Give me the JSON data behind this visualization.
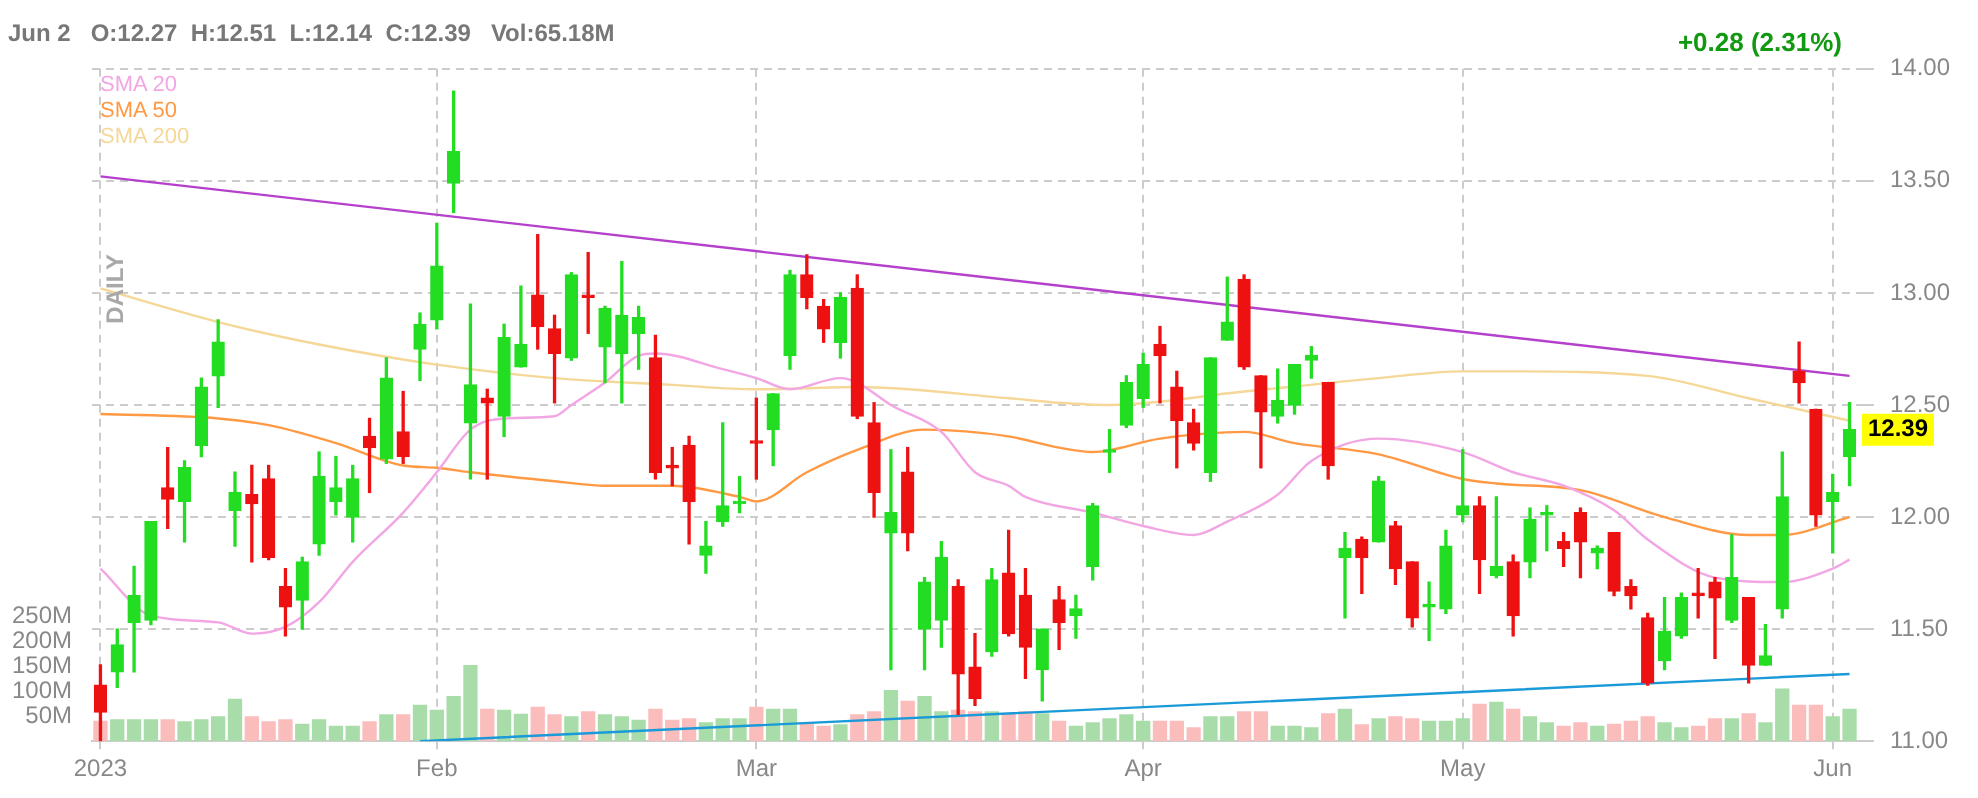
{
  "chart_data": {
    "type": "candlestick",
    "title": "Jun 2   O:12.27  H:12.51  L:12.14  C:12.39   Vol:65.18M",
    "categories": [
      "2023",
      null,
      null,
      null,
      null,
      null,
      null,
      null,
      null,
      null,
      null,
      null,
      null,
      null,
      null,
      null,
      null,
      null,
      null,
      null,
      "Feb",
      null,
      null,
      null,
      null,
      null,
      null,
      null,
      null,
      null,
      null,
      null,
      null,
      null,
      null,
      null,
      null,
      null,
      null,
      "Mar",
      null,
      null,
      null,
      null,
      null,
      null,
      null,
      null,
      null,
      null,
      null,
      null,
      null,
      null,
      null,
      null,
      null,
      null,
      null,
      null,
      null,
      null,
      "Apr",
      null,
      null,
      null,
      null,
      null,
      null,
      null,
      null,
      null,
      null,
      null,
      null,
      null,
      null,
      null,
      null,
      null,
      null,
      "May",
      null,
      null,
      null,
      null,
      null,
      null,
      null,
      null,
      null,
      null,
      null,
      null,
      null,
      null,
      null,
      null,
      null,
      null,
      null,
      null,
      null,
      "Jun",
      null
    ],
    "series": [
      {
        "ohlc": [
          [
            11.25,
            11.34,
            11.0,
            11.13
          ],
          [
            11.31,
            11.5,
            11.24,
            11.43
          ],
          [
            11.53,
            11.78,
            11.31,
            11.65
          ],
          [
            11.54,
            11.98,
            11.52,
            11.98
          ],
          [
            12.13,
            12.31,
            11.95,
            12.08
          ],
          [
            12.07,
            12.25,
            11.89,
            12.22
          ],
          [
            12.32,
            12.62,
            12.27,
            12.58
          ],
          [
            12.63,
            12.88,
            12.49,
            12.78
          ],
          [
            12.03,
            12.2,
            11.87,
            12.11
          ],
          [
            12.1,
            12.23,
            11.8,
            12.06
          ],
          [
            12.17,
            12.23,
            11.81,
            11.82
          ],
          [
            11.69,
            11.77,
            11.47,
            11.6
          ],
          [
            11.63,
            11.82,
            11.5,
            11.8
          ],
          [
            11.88,
            12.29,
            11.83,
            12.18
          ],
          [
            12.07,
            12.27,
            12.01,
            12.13
          ],
          [
            12.0,
            12.23,
            11.89,
            12.17
          ],
          [
            12.36,
            12.44,
            12.11,
            12.31
          ],
          [
            12.26,
            12.71,
            12.24,
            12.62
          ],
          [
            12.38,
            12.56,
            12.24,
            12.27
          ],
          [
            12.75,
            12.91,
            12.61,
            12.86
          ],
          [
            12.88,
            13.31,
            12.84,
            13.12
          ],
          [
            13.49,
            13.9,
            13.36,
            13.63
          ],
          [
            12.42,
            12.95,
            12.17,
            12.59
          ],
          [
            12.53,
            12.57,
            12.17,
            12.51
          ],
          [
            12.45,
            12.86,
            12.36,
            12.8
          ],
          [
            12.67,
            13.03,
            12.67,
            12.77
          ],
          [
            12.99,
            13.26,
            12.75,
            12.85
          ],
          [
            12.84,
            12.9,
            12.51,
            12.73
          ],
          [
            12.71,
            13.09,
            12.7,
            13.08
          ],
          [
            12.99,
            13.18,
            12.82,
            12.98
          ],
          [
            12.76,
            12.94,
            12.6,
            12.93
          ],
          [
            12.73,
            13.14,
            12.51,
            12.9
          ],
          [
            12.82,
            12.94,
            12.66,
            12.89
          ],
          [
            12.71,
            12.81,
            12.17,
            12.2
          ],
          [
            12.23,
            12.31,
            12.14,
            12.22
          ],
          [
            12.32,
            12.36,
            11.88,
            12.07
          ],
          [
            11.83,
            11.98,
            11.75,
            11.87
          ],
          [
            11.98,
            12.42,
            11.96,
            12.05
          ],
          [
            12.06,
            12.18,
            12.02,
            12.07
          ],
          [
            12.34,
            12.53,
            12.17,
            12.33
          ],
          [
            12.39,
            12.55,
            12.23,
            12.55
          ],
          [
            12.72,
            13.1,
            12.66,
            13.08
          ],
          [
            13.08,
            13.17,
            12.93,
            12.98
          ],
          [
            12.94,
            12.97,
            12.78,
            12.84
          ],
          [
            12.78,
            13.0,
            12.71,
            12.98
          ],
          [
            13.02,
            13.08,
            12.44,
            12.45
          ],
          [
            12.42,
            12.51,
            12.0,
            12.11
          ],
          [
            11.93,
            12.3,
            11.32,
            12.02
          ],
          [
            12.2,
            12.31,
            11.85,
            11.93
          ],
          [
            11.5,
            11.73,
            11.32,
            11.71
          ],
          [
            11.54,
            11.89,
            11.42,
            11.82
          ],
          [
            11.69,
            11.72,
            11.12,
            11.3
          ],
          [
            11.33,
            11.48,
            11.16,
            11.19
          ],
          [
            11.4,
            11.77,
            11.38,
            11.72
          ],
          [
            11.75,
            11.94,
            11.47,
            11.48
          ],
          [
            11.65,
            11.77,
            11.28,
            11.42
          ],
          [
            11.32,
            11.5,
            11.18,
            11.5
          ],
          [
            11.63,
            11.69,
            11.41,
            11.53
          ],
          [
            11.56,
            11.65,
            11.46,
            11.59
          ],
          [
            11.78,
            12.06,
            11.72,
            12.05
          ],
          [
            12.29,
            12.39,
            12.2,
            12.3
          ],
          [
            12.41,
            12.63,
            12.4,
            12.6
          ],
          [
            12.53,
            12.73,
            12.49,
            12.68
          ],
          [
            12.77,
            12.85,
            12.51,
            12.72
          ],
          [
            12.58,
            12.65,
            12.22,
            12.43
          ],
          [
            12.42,
            12.48,
            12.3,
            12.33
          ],
          [
            12.2,
            12.71,
            12.16,
            12.71
          ],
          [
            12.79,
            13.07,
            12.79,
            12.87
          ],
          [
            13.06,
            13.08,
            12.66,
            12.67
          ],
          [
            12.63,
            12.63,
            12.22,
            12.47
          ],
          [
            12.45,
            12.66,
            12.42,
            12.52
          ],
          [
            12.5,
            12.68,
            12.46,
            12.68
          ],
          [
            12.7,
            12.76,
            12.62,
            12.72
          ],
          [
            12.6,
            12.6,
            12.17,
            12.23
          ],
          [
            11.82,
            11.93,
            11.55,
            11.86
          ],
          [
            11.9,
            11.91,
            11.66,
            11.82
          ],
          [
            11.89,
            12.18,
            11.89,
            12.16
          ],
          [
            11.96,
            11.98,
            11.7,
            11.77
          ],
          [
            11.8,
            11.8,
            11.51,
            11.55
          ],
          [
            11.6,
            11.71,
            11.45,
            11.61
          ],
          [
            11.59,
            11.94,
            11.57,
            11.87
          ],
          [
            12.01,
            12.3,
            11.98,
            12.05
          ],
          [
            12.05,
            12.09,
            11.66,
            11.81
          ],
          [
            11.74,
            12.09,
            11.73,
            11.78
          ],
          [
            11.8,
            11.83,
            11.47,
            11.56
          ],
          [
            11.8,
            12.04,
            11.73,
            11.99
          ],
          [
            12.01,
            12.05,
            11.85,
            12.02
          ],
          [
            11.89,
            11.93,
            11.78,
            11.86
          ],
          [
            12.02,
            12.04,
            11.73,
            11.89
          ],
          [
            11.84,
            11.87,
            11.77,
            11.86
          ],
          [
            11.93,
            11.93,
            11.65,
            11.67
          ],
          [
            11.69,
            11.72,
            11.59,
            11.65
          ],
          [
            11.55,
            11.57,
            11.25,
            11.26
          ],
          [
            11.36,
            11.64,
            11.32,
            11.49
          ],
          [
            11.47,
            11.66,
            11.46,
            11.64
          ],
          [
            11.66,
            11.77,
            11.55,
            11.65
          ],
          [
            11.71,
            11.73,
            11.37,
            11.64
          ],
          [
            11.54,
            11.92,
            11.53,
            11.73
          ],
          [
            11.64,
            11.64,
            11.26,
            11.34
          ],
          [
            11.34,
            11.52,
            11.34,
            11.38
          ],
          [
            11.59,
            12.29,
            11.55,
            12.09
          ],
          [
            12.65,
            12.78,
            12.51,
            12.6
          ],
          [
            12.48,
            12.48,
            11.96,
            12.01
          ],
          [
            12.07,
            12.19,
            11.84,
            12.11
          ],
          [
            12.27,
            12.51,
            12.14,
            12.39
          ]
        ],
        "colors": [
          "#ee1111",
          "#22dd22",
          "#22dd22",
          "#22dd22",
          "#ee1111",
          "#22dd22",
          "#22dd22",
          "#22dd22",
          "#22dd22",
          "#ee1111",
          "#ee1111",
          "#ee1111",
          "#22dd22",
          "#22dd22",
          "#22dd22",
          "#22dd22",
          "#ee1111",
          "#22dd22",
          "#ee1111",
          "#22dd22",
          "#22dd22",
          "#22dd22",
          "#22dd22",
          "#ee1111",
          "#22dd22",
          "#22dd22",
          "#ee1111",
          "#ee1111",
          "#22dd22",
          "#ee1111",
          "#22dd22",
          "#22dd22",
          "#22dd22",
          "#ee1111",
          "#ee1111",
          "#ee1111",
          "#22dd22",
          "#22dd22",
          "#22dd22",
          "#ee1111",
          "#22dd22",
          "#22dd22",
          "#ee1111",
          "#ee1111",
          "#22dd22",
          "#ee1111",
          "#ee1111",
          "#22dd22",
          "#ee1111",
          "#22dd22",
          "#22dd22",
          "#ee1111",
          "#ee1111",
          "#22dd22",
          "#ee1111",
          "#ee1111",
          "#22dd22",
          "#ee1111",
          "#22dd22",
          "#22dd22",
          "#22dd22",
          "#22dd22",
          "#22dd22",
          "#ee1111",
          "#ee1111",
          "#ee1111",
          "#22dd22",
          "#22dd22",
          "#ee1111",
          "#ee1111",
          "#22dd22",
          "#22dd22",
          "#22dd22",
          "#ee1111",
          "#22dd22",
          "#ee1111",
          "#22dd22",
          "#ee1111",
          "#ee1111",
          "#22dd22",
          "#22dd22",
          "#22dd22",
          "#ee1111",
          "#22dd22",
          "#ee1111",
          "#22dd22",
          "#22dd22",
          "#ee1111",
          "#ee1111",
          "#22dd22",
          "#ee1111",
          "#ee1111",
          "#ee1111",
          "#22dd22",
          "#22dd22",
          "#ee1111",
          "#ee1111",
          "#22dd22",
          "#ee1111",
          "#22dd22",
          "#22dd22",
          "#ee1111",
          "#ee1111",
          "#22dd22",
          "#22dd22"
        ]
      },
      {
        "type": "bar",
        "axis": "y2",
        "values": [
          41,
          44,
          44,
          44,
          44,
          40,
          44,
          50,
          85,
          50,
          40,
          44,
          35,
          44,
          31,
          31,
          40,
          54,
          54,
          73,
          63,
          91,
          153,
          65,
          63,
          55,
          69,
          54,
          50,
          60,
          54,
          50,
          43,
          65,
          43,
          46,
          38,
          46,
          46,
          69,
          65,
          65,
          38,
          31,
          34,
          54,
          60,
          103,
          81,
          91,
          60,
          63,
          60,
          60,
          56,
          60,
          56,
          41,
          31,
          38,
          46,
          54,
          41,
          41,
          41,
          28,
          50,
          50,
          60,
          60,
          31,
          31,
          28,
          56,
          65,
          34,
          46,
          50,
          46,
          41,
          41,
          46,
          75,
          79,
          65,
          50,
          38,
          31,
          38,
          31,
          35,
          41,
          50,
          38,
          28,
          31,
          46,
          46,
          56,
          38,
          106,
          73,
          73,
          50,
          65.18
        ],
        "colors": [
          "#fbbcbc",
          "#a8dca8",
          "#a8dca8",
          "#a8dca8",
          "#fbbcbc",
          "#a8dca8",
          "#a8dca8",
          "#a8dca8",
          "#a8dca8",
          "#fbbcbc",
          "#fbbcbc",
          "#fbbcbc",
          "#a8dca8",
          "#a8dca8",
          "#a8dca8",
          "#a8dca8",
          "#fbbcbc",
          "#a8dca8",
          "#fbbcbc",
          "#a8dca8",
          "#a8dca8",
          "#a8dca8",
          "#a8dca8",
          "#fbbcbc",
          "#a8dca8",
          "#a8dca8",
          "#fbbcbc",
          "#fbbcbc",
          "#a8dca8",
          "#fbbcbc",
          "#a8dca8",
          "#a8dca8",
          "#a8dca8",
          "#fbbcbc",
          "#fbbcbc",
          "#fbbcbc",
          "#a8dca8",
          "#a8dca8",
          "#a8dca8",
          "#fbbcbc",
          "#a8dca8",
          "#a8dca8",
          "#fbbcbc",
          "#fbbcbc",
          "#a8dca8",
          "#fbbcbc",
          "#fbbcbc",
          "#a8dca8",
          "#fbbcbc",
          "#a8dca8",
          "#a8dca8",
          "#fbbcbc",
          "#fbbcbc",
          "#a8dca8",
          "#fbbcbc",
          "#fbbcbc",
          "#a8dca8",
          "#fbbcbc",
          "#a8dca8",
          "#a8dca8",
          "#a8dca8",
          "#a8dca8",
          "#a8dca8",
          "#fbbcbc",
          "#fbbcbc",
          "#fbbcbc",
          "#a8dca8",
          "#a8dca8",
          "#fbbcbc",
          "#fbbcbc",
          "#a8dca8",
          "#a8dca8",
          "#a8dca8",
          "#fbbcbc",
          "#a8dca8",
          "#fbbcbc",
          "#a8dca8",
          "#fbbcbc",
          "#fbbcbc",
          "#a8dca8",
          "#a8dca8",
          "#a8dca8",
          "#fbbcbc",
          "#a8dca8",
          "#fbbcbc",
          "#a8dca8",
          "#a8dca8",
          "#fbbcbc",
          "#fbbcbc",
          "#a8dca8",
          "#fbbcbc",
          "#fbbcbc",
          "#fbbcbc",
          "#a8dca8",
          "#a8dca8",
          "#fbbcbc",
          "#fbbcbc",
          "#a8dca8",
          "#fbbcbc",
          "#a8dca8",
          "#a8dca8",
          "#fbbcbc",
          "#fbbcbc",
          "#a8dca8",
          "#a8dca8"
        ]
      },
      {
        "type": "line",
        "name": "SMA 20",
        "color": "#f2a6e4",
        "values": [
          11.77,
          null,
          null,
          11.56,
          null,
          null,
          null,
          11.53,
          null,
          11.48,
          null,
          11.51,
          null,
          11.62,
          null,
          11.8,
          null,
          null,
          12.02,
          null,
          12.2,
          null,
          12.39,
          null,
          12.44,
          null,
          null,
          12.45,
          12.5,
          null,
          12.6,
          null,
          12.72,
          12.73,
          null,
          null,
          null,
          12.66,
          null,
          12.62,
          null,
          12.57,
          null,
          null,
          12.62,
          12.6,
          null,
          12.5,
          null,
          null,
          12.38,
          null,
          12.2,
          null,
          12.14,
          12.09,
          null,
          null,
          null,
          12.02,
          null,
          null,
          11.96,
          null,
          null,
          11.92,
          null,
          11.98,
          null,
          null,
          12.1,
          null,
          12.25,
          null,
          null,
          null,
          12.35,
          null,
          null,
          null,
          null,
          12.29,
          null,
          null,
          12.2,
          null,
          null,
          12.14,
          null,
          null,
          12.03,
          null,
          11.9,
          null,
          null,
          null,
          11.73,
          null,
          null,
          null,
          11.71,
          null,
          null,
          11.77,
          11.81
        ]
      },
      {
        "type": "line",
        "name": "SMA 50",
        "color": "#ff9944",
        "values": [
          12.46,
          null,
          null,
          null,
          null,
          null,
          null,
          12.44,
          null,
          null,
          12.41,
          null,
          null,
          null,
          12.33,
          null,
          null,
          null,
          12.23,
          null,
          12.22,
          null,
          12.2,
          null,
          null,
          null,
          null,
          12.16,
          null,
          null,
          12.14,
          null,
          null,
          null,
          12.14,
          null,
          null,
          null,
          12.09,
          12.07,
          null,
          null,
          12.2,
          null,
          null,
          12.3,
          null,
          null,
          null,
          12.39,
          null,
          null,
          null,
          null,
          12.36,
          null,
          null,
          12.31,
          null,
          12.29,
          null,
          null,
          null,
          12.35,
          null,
          null,
          null,
          null,
          12.38,
          null,
          null,
          12.33,
          null,
          null,
          null,
          null,
          12.28,
          null,
          null,
          null,
          null,
          12.17,
          null,
          12.15,
          null,
          null,
          null,
          null,
          12.12,
          null,
          null,
          null,
          null,
          12.0,
          null,
          null,
          null,
          null,
          11.92,
          null,
          11.92,
          null,
          null,
          null,
          12.0
        ]
      },
      {
        "type": "line",
        "name": "SMA 200",
        "color": "#f5d898",
        "values": [
          13.02,
          null,
          null,
          null,
          null,
          null,
          null,
          12.87,
          null,
          null,
          null,
          null,
          null,
          12.77,
          null,
          null,
          null,
          null,
          null,
          null,
          12.68,
          null,
          null,
          null,
          null,
          null,
          null,
          12.62,
          null,
          null,
          null,
          null,
          null,
          null,
          12.59,
          null,
          null,
          null,
          null,
          12.57,
          null,
          null,
          null,
          null,
          null,
          12.58,
          null,
          null,
          null,
          null,
          null,
          null,
          null,
          null,
          12.53,
          null,
          null,
          12.51,
          null,
          null,
          12.5,
          null,
          null,
          null,
          null,
          null,
          null,
          null,
          12.56,
          null,
          null,
          null,
          null,
          null,
          null,
          null,
          12.62,
          null,
          null,
          null,
          null,
          12.65,
          null,
          null,
          12.65,
          null,
          null,
          null,
          null,
          null,
          null,
          null,
          12.63,
          null,
          null,
          null,
          null,
          null,
          12.53,
          null,
          null,
          null,
          null,
          null,
          12.43
        ]
      },
      {
        "type": "line",
        "color": "#b440cc",
        "values": [
          13.52,
          null,
          null,
          null,
          null,
          null,
          null,
          null,
          null,
          null,
          null,
          null,
          null,
          null,
          null,
          null,
          null,
          null,
          null,
          null,
          null,
          null,
          null,
          null,
          null,
          null,
          null,
          null,
          null,
          null,
          null,
          null,
          null,
          null,
          null,
          null,
          null,
          null,
          null,
          null,
          null,
          null,
          null,
          null,
          null,
          null,
          null,
          null,
          null,
          null,
          null,
          null,
          null,
          null,
          null,
          null,
          null,
          null,
          null,
          null,
          null,
          null,
          null,
          null,
          null,
          null,
          null,
          null,
          null,
          null,
          null,
          null,
          null,
          null,
          null,
          null,
          null,
          null,
          null,
          null,
          null,
          null,
          null,
          null,
          null,
          null,
          null,
          null,
          null,
          null,
          null,
          null,
          null,
          null,
          null,
          null,
          null,
          null,
          null,
          null,
          null,
          null,
          null,
          null,
          12.63
        ]
      },
      {
        "type": "line",
        "color": "#1a9ad8",
        "values": [
          null,
          null,
          null,
          null,
          null,
          null,
          null,
          null,
          null,
          null,
          null,
          null,
          null,
          null,
          null,
          null,
          null,
          null,
          null,
          11.0,
          null,
          null,
          null,
          null,
          null,
          null,
          null,
          null,
          null,
          null,
          null,
          null,
          null,
          null,
          null,
          null,
          null,
          null,
          null,
          null,
          null,
          null,
          null,
          null,
          null,
          null,
          null,
          null,
          null,
          null,
          null,
          null,
          null,
          null,
          null,
          null,
          null,
          null,
          null,
          null,
          null,
          null,
          null,
          null,
          null,
          null,
          null,
          null,
          null,
          null,
          null,
          null,
          null,
          null,
          null,
          null,
          null,
          null,
          null,
          null,
          null,
          null,
          null,
          null,
          null,
          null,
          null,
          null,
          null,
          null,
          null,
          null,
          null,
          null,
          null,
          null,
          null,
          null,
          null,
          null,
          null,
          null,
          null,
          null,
          11.3
        ]
      }
    ],
    "ylim": [
      11,
      14
    ],
    "yticks": [
      {
        "value": 11,
        "label": "11.00"
      },
      {
        "value": 11.5,
        "label": "11.50"
      },
      {
        "value": 12,
        "label": "12.00"
      },
      {
        "value": 12.5,
        "label": "12.50"
      },
      {
        "value": 13,
        "label": "13.00"
      },
      {
        "value": 13.5,
        "label": "13.50"
      },
      {
        "value": 14,
        "label": "14.00"
      }
    ],
    "y2lim": [
      0,
      1350
    ],
    "y2ticks": [
      {
        "value": 50,
        "label": "50M"
      },
      {
        "value": 100,
        "label": "100M"
      },
      {
        "value": 150,
        "label": "150M"
      },
      {
        "value": 200,
        "label": "200M"
      },
      {
        "value": 250,
        "label": "250M"
      }
    ],
    "grid": true,
    "legend": "top left",
    "marker": "none",
    "line_style": "solid",
    "annotations": [
      "+0.28 (2.31%)",
      "DAILY",
      {
        "text": "12.39",
        "y": 12.39
      }
    ]
  }
}
